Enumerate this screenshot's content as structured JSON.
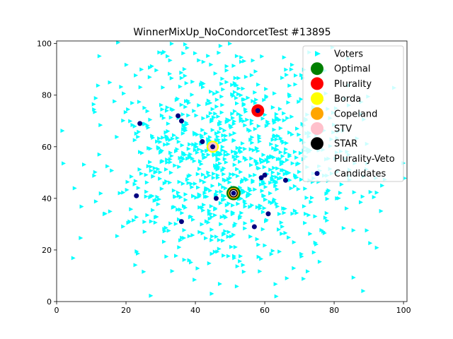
{
  "chart_data": {
    "type": "scatter",
    "title": "WinnerMixUp_NoCondorcetTest #13895",
    "xlabel": "",
    "ylabel": "",
    "xlim": [
      0,
      101
    ],
    "ylim": [
      0,
      101
    ],
    "x_ticks": [
      0,
      20,
      40,
      60,
      80,
      100
    ],
    "y_ticks": [
      0,
      20,
      40,
      60,
      80,
      100
    ],
    "grid": false,
    "legend_position": "top-right",
    "legend": [
      "Voters",
      "Optimal",
      "Plurality",
      "Borda",
      "Copeland",
      "STV",
      "STAR",
      "Plurality-Veto",
      "Candidates"
    ],
    "series": [
      {
        "name": "Candidates",
        "marker": "circle",
        "color": "#000080",
        "points": [
          [
            24,
            69
          ],
          [
            35,
            72
          ],
          [
            36,
            70
          ],
          [
            42,
            62
          ],
          [
            45,
            60
          ],
          [
            23,
            41
          ],
          [
            36,
            31
          ],
          [
            46,
            40
          ],
          [
            51,
            42
          ],
          [
            58,
            74
          ],
          [
            59,
            48
          ],
          [
            60,
            49
          ],
          [
            61,
            34
          ],
          [
            57,
            29
          ],
          [
            66,
            47
          ]
        ]
      },
      {
        "name": "Optimal",
        "marker": "circle",
        "color": "#008000",
        "points": [
          [
            51,
            42
          ]
        ]
      },
      {
        "name": "Plurality",
        "marker": "circle",
        "color": "#ff0000",
        "points": [
          [
            58,
            74
          ]
        ]
      },
      {
        "name": "Borda",
        "marker": "circle",
        "color": "#ffff00",
        "points": [
          [
            45,
            60
          ]
        ]
      },
      {
        "name": "Copeland",
        "marker": "circle",
        "color": "#ffa500",
        "points": [
          [
            51,
            42
          ]
        ]
      },
      {
        "name": "STV",
        "marker": "circle",
        "color": "#ffc0cb",
        "points": [
          [
            45,
            60
          ]
        ]
      },
      {
        "name": "STAR",
        "marker": "circle",
        "color": "#000000",
        "points": [
          [
            51,
            42
          ]
        ]
      },
      {
        "name": "Plurality-Veto",
        "marker": "circle",
        "color": "#ffffff",
        "points": [
          [
            51,
            42
          ]
        ]
      },
      {
        "name": "Voters",
        "marker": "triangle-right",
        "color": "#00ffff",
        "distribution_note": "approximately 1000 voters spread over the plot, densest near (50, 55)",
        "points": []
      }
    ]
  }
}
